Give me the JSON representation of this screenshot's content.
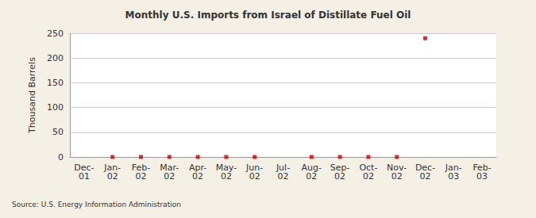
{
  "chart_data": {
    "type": "scatter",
    "title": "Monthly U.S. Imports from Israel of Distillate Fuel Oil",
    "y_label": "Thousand Barrels",
    "source": "Source: U.S. Energy Information Administration",
    "categories": [
      "Dec-01",
      "Jan-02",
      "Feb-02",
      "Mar-02",
      "Apr-02",
      "May-02",
      "Jun-02",
      "Jul-02",
      "Aug-02",
      "Sep-02",
      "Oct-02",
      "Nov-02",
      "Dec-02",
      "Jan-03",
      "Feb-03"
    ],
    "values": [
      null,
      0,
      0,
      0,
      0,
      0,
      0,
      null,
      0,
      0,
      0,
      0,
      240,
      null,
      null
    ],
    "color": "#cc0000",
    "marker": "square",
    "ylim": [
      0,
      250
    ],
    "yticks": [
      0,
      50,
      100,
      150,
      200,
      250
    ],
    "grid": true
  }
}
